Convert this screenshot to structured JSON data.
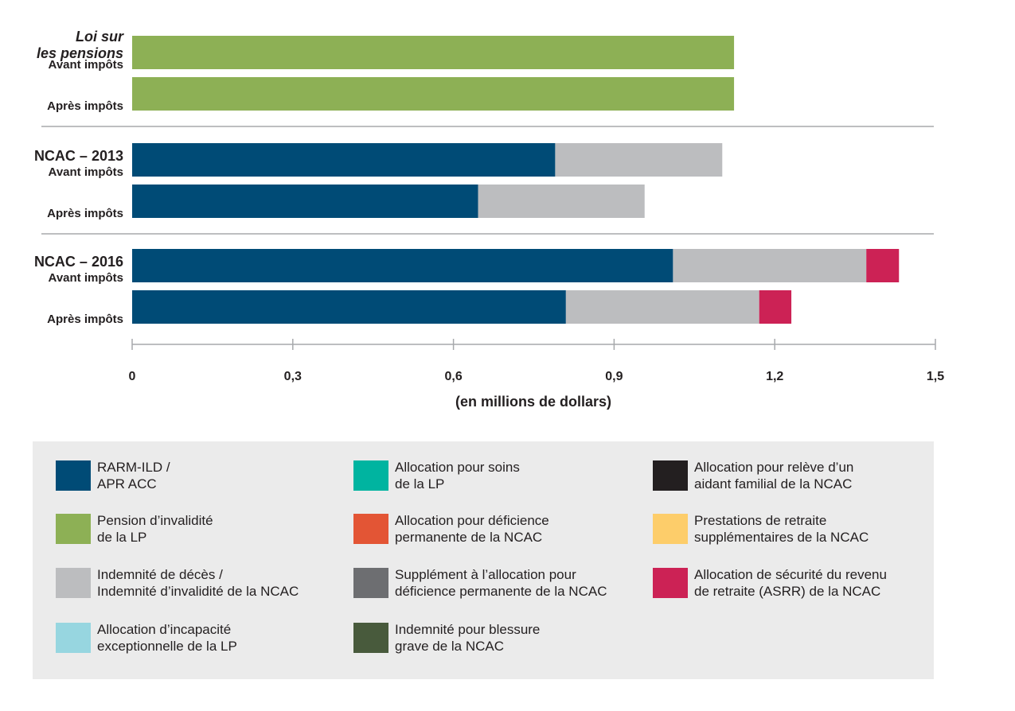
{
  "chart_data": {
    "type": "bar",
    "orientation": "horizontal",
    "stacked": true,
    "xlabel": "(en millions de dollars)",
    "xlim": [
      0,
      1.5
    ],
    "xticks": [
      "0",
      "0,3",
      "0,6",
      "0,9",
      "1,2",
      "1,5"
    ],
    "xtick_values": [
      0,
      0.3,
      0.6,
      0.9,
      1.2,
      1.5
    ],
    "groups": [
      {
        "title_lines": [
          "Loi sur",
          "les pensions"
        ],
        "title_italic": true,
        "rows": [
          {
            "label": "Avant impôts",
            "segments": [
              {
                "series": "pension",
                "value": 1.124
              }
            ]
          },
          {
            "label": "Après impôts",
            "segments": [
              {
                "series": "pension",
                "value": 1.124
              }
            ]
          }
        ]
      },
      {
        "title_lines": [
          "NCAC – 2013"
        ],
        "title_italic": false,
        "rows": [
          {
            "label": "Avant impôts",
            "segments": [
              {
                "series": "rarm",
                "value": 0.79
              },
              {
                "series": "deces",
                "value": 0.312
              }
            ]
          },
          {
            "label": "Après impôts",
            "segments": [
              {
                "series": "rarm",
                "value": 0.646
              },
              {
                "series": "deces",
                "value": 0.311
              }
            ]
          }
        ]
      },
      {
        "title_lines": [
          "NCAC – 2016"
        ],
        "title_italic": false,
        "rows": [
          {
            "label": "Avant impôts",
            "segments": [
              {
                "series": "rarm",
                "value": 1.01
              },
              {
                "series": "deces",
                "value": 0.361
              },
              {
                "series": "asrr",
                "value": 0.061
              }
            ]
          },
          {
            "label": "Après impôts",
            "segments": [
              {
                "series": "rarm",
                "value": 0.81
              },
              {
                "series": "deces",
                "value": 0.361
              },
              {
                "series": "asrr",
                "value": 0.06
              }
            ]
          }
        ]
      }
    ],
    "legend_position": "bottom",
    "legend": [
      {
        "key": "rarm",
        "label": "RARM-ILD /\nAPR ACC",
        "color": "#004b76"
      },
      {
        "key": "soins",
        "label": "Allocation pour soins\nde la LP",
        "color": "#00b4a0"
      },
      {
        "key": "releve",
        "label": "Allocation pour relève d’un\naidant familial de la NCAC",
        "color": "#231f20"
      },
      {
        "key": "pension",
        "label": "Pension d’invalidité\nde la LP",
        "color": "#8db055"
      },
      {
        "key": "deficience",
        "label": "Allocation pour déficience\npermanente de la NCAC",
        "color": "#e35535"
      },
      {
        "key": "retraite",
        "label": "Prestations de retraite\nsupplémentaires de la NCAC",
        "color": "#fdcd6a"
      },
      {
        "key": "deces",
        "label": "Indemnité de décès /\nIndemnité d’invalidité de la NCAC",
        "color": "#bcbdbf"
      },
      {
        "key": "supplement",
        "label": "Supplément à l’allocation pour\ndéficience permanente de la NCAC",
        "color": "#6d6e71"
      },
      {
        "key": "asrr",
        "label": "Allocation de sécurité du revenu\nde retraite (ASRR) de la NCAC",
        "color": "#cc2255"
      },
      {
        "key": "incapacite",
        "label": "Allocation d’incapacité\nexceptionnelle de la LP",
        "color": "#97d6e0"
      },
      {
        "key": "blessure",
        "label": "Indemnité pour blessure\ngrave de la NCAC",
        "color": "#485a3c"
      }
    ]
  }
}
